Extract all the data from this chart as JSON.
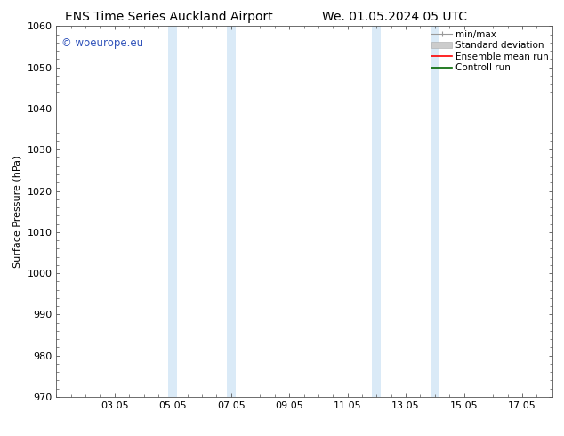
{
  "title_left": "ENS Time Series Auckland Airport",
  "title_right": "We. 01.05.2024 05 UTC",
  "ylabel": "Surface Pressure (hPa)",
  "ylim": [
    970,
    1060
  ],
  "yticks": [
    970,
    980,
    990,
    1000,
    1010,
    1020,
    1030,
    1040,
    1050,
    1060
  ],
  "xlim": [
    0,
    17.05
  ],
  "xtick_labels": [
    "03.05",
    "05.05",
    "07.05",
    "09.05",
    "11.05",
    "13.05",
    "15.05",
    "17.05"
  ],
  "xtick_positions": [
    2,
    4,
    6,
    8,
    10,
    12,
    14,
    16
  ],
  "shaded_bands": [
    {
      "x_start": 3.85,
      "x_end": 4.15
    },
    {
      "x_start": 5.85,
      "x_end": 6.15
    },
    {
      "x_start": 10.85,
      "x_end": 11.15
    },
    {
      "x_start": 12.85,
      "x_end": 13.15
    }
  ],
  "shaded_color": "#daeaf7",
  "watermark": "© woeurope.eu",
  "watermark_color": "#3355bb",
  "background_color": "#ffffff",
  "title_fontsize": 10,
  "tick_fontsize": 8,
  "label_fontsize": 8,
  "legend_fontsize": 7.5
}
